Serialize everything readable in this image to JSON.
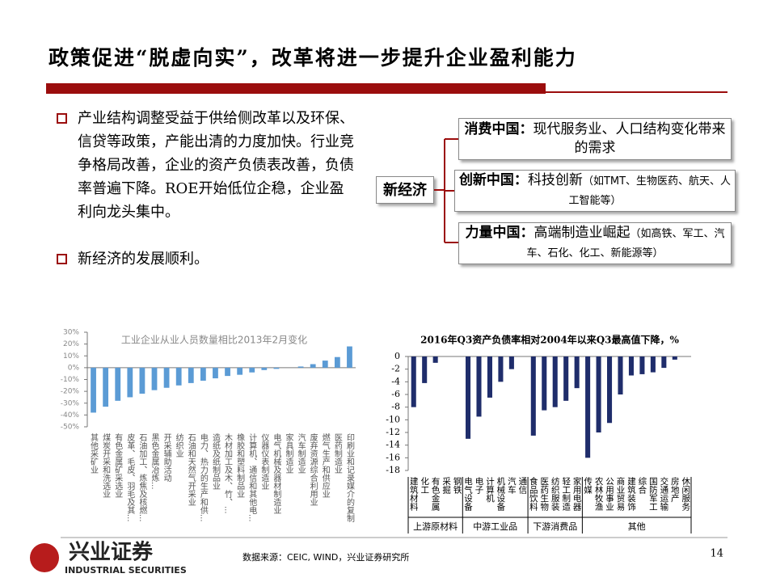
{
  "title": "政策促进“脱虚向实”，改革将进一步提升企业盈利能力",
  "bullets": [
    "产业结构调整受益于供给侧改革以及环保、信贷等政策，产能出清的力度加快。行业竞争格局改善，企业的资产负债表改善，负债率普遍下降。ROE开始低位企稳，企业盈利向龙头集中。",
    "新经济的发展顺利。"
  ],
  "diagram": {
    "root": "新经济",
    "branches": [
      {
        "head": "消费中国：",
        "text": "现代服务业、人口结构变化带来的需求"
      },
      {
        "head": "创新中国：",
        "text": "科技创新",
        "note": "（如TMT、生物医药、航天、人工智能等）"
      },
      {
        "head": "力量中国：",
        "text": "高端制造业崛起",
        "note": "（如高铁、军工、汽车、石化、化工、新能源等）"
      }
    ]
  },
  "chart_data": [
    {
      "type": "bar",
      "title": "工业企业从业人员数量相比2013年2月变化",
      "color": "#5b9bd5",
      "categories": [
        "其他采矿业",
        "煤炭开采和洗选业",
        "有色金属矿采选业",
        "皮革、毛皮、羽毛及其...",
        "石油加工、炼焦及核燃...",
        "黑色金属冶炼...",
        "开采辅助活动",
        "纺织业",
        "石油和天然气开采业",
        "电力、热力的生产和供...",
        "造纸及纸制品业",
        "木材加工及木、竹、...",
        "橡胶和塑料制品业",
        "计算机、通信和其他电...",
        "仪器仪表制造业",
        "电气机械及器材制造业",
        "家具制造业",
        "汽车制造业",
        "废弃资源综合利用业",
        "燃气生产和供应业",
        "医药制造业",
        "印刷业和记录媒介的复制"
      ],
      "values": [
        -38,
        -33,
        -28,
        -25,
        -22,
        -19,
        -17,
        -15,
        -13,
        -11,
        -9,
        -7,
        -6,
        -4,
        -2,
        -1,
        0,
        1,
        3,
        6,
        9,
        18
      ],
      "ylim": [
        -50,
        30
      ],
      "yticks": [
        {
          "value": 30,
          "label": "30%"
        },
        {
          "value": 20,
          "label": "20%"
        },
        {
          "value": 10,
          "label": "10%"
        },
        {
          "value": 0,
          "label": "0%"
        },
        {
          "value": -10,
          "label": "-10%"
        },
        {
          "value": -20,
          "label": "-20%"
        },
        {
          "value": -30,
          "label": "-30%"
        },
        {
          "value": -40,
          "label": "-40%"
        },
        {
          "value": -50,
          "label": "-50%"
        }
      ]
    },
    {
      "type": "bar",
      "title": "2016年Q3资产负债率相对2004年以来Q3最高值下降，%",
      "color": "#1f2d6b",
      "categories": [
        "建筑材料",
        "化工",
        "有色金属",
        "采掘",
        "钢铁",
        "电气设备",
        "电子",
        "计算机",
        "机械设备",
        "汽车",
        "通信",
        "食品饮料",
        "医药生物",
        "纺织服装",
        "轻工制造",
        "家用电器",
        "传媒",
        "农林牧渔",
        "公用事业",
        "商业贸易",
        "建筑装饰",
        "综合",
        "国防军工",
        "交通运输",
        "房地产",
        "休闲服务"
      ],
      "values": [
        -8,
        -4.2,
        -1,
        0,
        0,
        -13,
        -9.5,
        -6.5,
        -4,
        -2,
        0,
        -12.5,
        -8.5,
        -8,
        -7,
        -5,
        -16,
        -12,
        -10.5,
        -6,
        -3,
        -2.8,
        -2.5,
        -1.8,
        -0.5,
        0
      ],
      "groups": [
        {
          "name": "上游原材料",
          "size": 5
        },
        {
          "name": "中游工业品",
          "size": 6
        },
        {
          "name": "下游消费品",
          "size": 5
        },
        {
          "name": "其他",
          "size": 10
        }
      ],
      "ylim": [
        -18,
        0
      ],
      "yticks": [
        0,
        -2,
        -4,
        -6,
        -8,
        -10,
        -12,
        -14,
        -16,
        -18
      ]
    }
  ],
  "footer": {
    "logo": "兴业证券",
    "logo_en": "INDUSTRIAL SECURITIES",
    "source": "数据来源：CEIC, WIND，兴业证券研究所",
    "page": "14"
  }
}
